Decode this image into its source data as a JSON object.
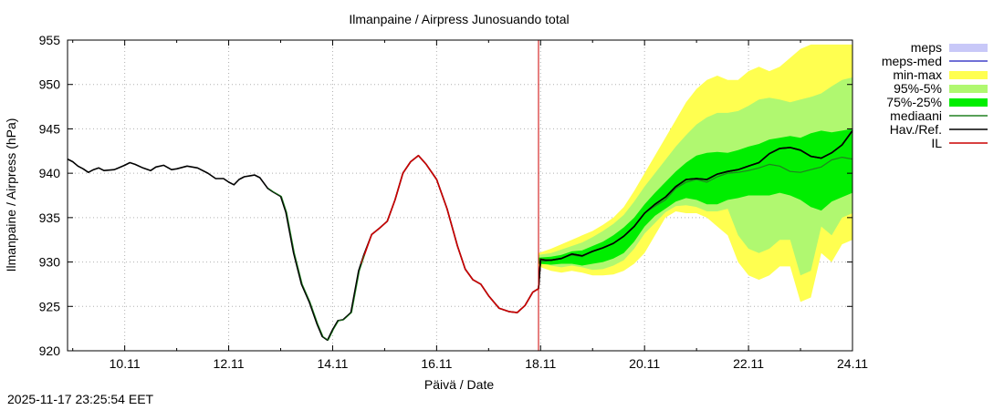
{
  "timestamp": "2025-11-17 23:25:54 EET",
  "chart_data": {
    "type": "area",
    "title": "Ilmanpaine / Airpress Junosuando total",
    "xlabel": "Päivä / Date",
    "ylabel": "Ilmanpaine / Airpress (hPa)",
    "xlim": [
      8.9,
      24.0
    ],
    "ylim": [
      920,
      955
    ],
    "grid": true,
    "legend_position": "right",
    "x_ticks": [
      {
        "x": 10,
        "label": "10.11"
      },
      {
        "x": 12,
        "label": "12.11"
      },
      {
        "x": 14,
        "label": "14.11"
      },
      {
        "x": 16,
        "label": "16.11"
      },
      {
        "x": 18,
        "label": "18.11"
      },
      {
        "x": 20,
        "label": "20.11"
      },
      {
        "x": 22,
        "label": "22.11"
      },
      {
        "x": 24,
        "label": "24.11"
      }
    ],
    "y_ticks": [
      920,
      925,
      930,
      935,
      940,
      945,
      950,
      955
    ],
    "now_line_x": 17.96,
    "colors": {
      "meps": "#c8c8f8",
      "meps_med": "#4040c8",
      "minmax": "#ffff50",
      "p95_5": "#b0f870",
      "p75_25": "#00ee00",
      "median": "#208020",
      "obs": "#000000",
      "il": "#cc0000",
      "now_line": "#cc0000",
      "grid": "#b0b0b0"
    },
    "legend": [
      {
        "key": "meps",
        "label": "meps",
        "style": "box"
      },
      {
        "key": "meps_med",
        "label": "meps-med",
        "style": "line"
      },
      {
        "key": "minmax",
        "label": "min-max",
        "style": "box"
      },
      {
        "key": "p95_5",
        "label": "95%-5%",
        "style": "box"
      },
      {
        "key": "p75_25",
        "label": "75%-25%",
        "style": "box"
      },
      {
        "key": "median",
        "label": "mediaani",
        "style": "line"
      },
      {
        "key": "obs",
        "label": "Hav./Ref.",
        "style": "line"
      },
      {
        "key": "il",
        "label": "IL",
        "style": "line"
      }
    ],
    "series": [
      {
        "name": "Hav./Ref.",
        "key": "obs",
        "x": [
          8.9,
          9.0,
          9.1,
          9.2,
          9.3,
          9.4,
          9.5,
          9.6,
          9.8,
          10.0,
          10.1,
          10.2,
          10.35,
          10.5,
          10.6,
          10.75,
          10.9,
          11.0,
          11.2,
          11.4,
          11.6,
          11.75,
          11.9,
          12.0,
          12.1,
          12.2,
          12.3,
          12.4,
          12.5,
          12.6,
          12.75,
          12.85,
          13.0,
          13.1,
          13.25,
          13.4,
          13.55,
          13.7,
          13.8,
          13.9,
          14.0,
          14.1,
          14.2,
          14.35,
          14.5,
          14.6,
          14.75,
          14.9,
          15.05,
          15.2,
          15.35,
          15.5,
          15.65,
          15.8,
          16.0,
          16.2,
          16.4,
          16.55,
          16.7,
          16.85,
          17.0,
          17.2,
          17.4,
          17.55,
          17.7,
          17.85,
          17.96,
          18.0,
          18.1,
          18.2,
          18.4,
          18.6,
          18.8,
          19.0,
          19.2,
          19.4,
          19.6,
          19.8,
          20.0,
          20.2,
          20.4,
          20.6,
          20.8,
          21.0,
          21.2,
          21.4,
          21.6,
          21.8,
          22.0,
          22.2,
          22.4,
          22.6,
          22.8,
          23.0,
          23.2,
          23.4,
          23.6,
          23.8,
          24.0
        ],
        "y": [
          941.6,
          941.3,
          940.8,
          940.5,
          940.1,
          940.4,
          940.6,
          940.3,
          940.4,
          940.9,
          941.2,
          941.0,
          940.6,
          940.3,
          940.7,
          940.9,
          940.4,
          940.5,
          940.8,
          940.6,
          940.0,
          939.4,
          939.4,
          939.0,
          938.7,
          939.3,
          939.6,
          939.7,
          939.8,
          939.5,
          938.3,
          937.9,
          937.4,
          935.6,
          931.0,
          927.5,
          925.5,
          923.0,
          921.6,
          921.2,
          922.4,
          923.4,
          923.5,
          924.3,
          929.0,
          930.8,
          933.1,
          933.8,
          934.6,
          937.0,
          940.0,
          941.3,
          942.0,
          941.0,
          939.3,
          936.0,
          931.8,
          929.2,
          928.0,
          927.5,
          926.2,
          924.8,
          924.4,
          924.3,
          925.1,
          926.6,
          927.0,
          930.3,
          930.2,
          930.2,
          930.4,
          930.9,
          930.7,
          931.2,
          931.6,
          932.1,
          932.9,
          934.0,
          935.5,
          936.5,
          937.3,
          938.5,
          939.3,
          939.4,
          939.3,
          939.9,
          940.2,
          940.4,
          940.8,
          941.2,
          942.2,
          942.8,
          942.9,
          942.6,
          941.9,
          941.7,
          942.3,
          943.2,
          944.8
        ]
      },
      {
        "name": "IL",
        "key": "il",
        "x": [
          14.55,
          14.75,
          14.9,
          15.05,
          15.2,
          15.35,
          15.5,
          15.65,
          15.8,
          16.0,
          16.2,
          16.4,
          16.55,
          16.7,
          16.85,
          17.0,
          17.2,
          17.4,
          17.55,
          17.7,
          17.85,
          17.96,
          18.0,
          18.1,
          18.2
        ],
        "y": [
          929.8,
          933.1,
          933.8,
          934.6,
          937.0,
          940.0,
          941.3,
          942.0,
          941.0,
          939.3,
          936.0,
          931.8,
          929.2,
          928.0,
          927.5,
          926.2,
          924.8,
          924.4,
          924.3,
          925.1,
          926.6,
          927.0,
          930.3,
          930.2,
          930.2
        ]
      },
      {
        "name": "mediaani",
        "key": "median",
        "x": [
          17.96,
          18.2,
          18.4,
          18.6,
          18.8,
          19.0,
          19.2,
          19.4,
          19.6,
          19.8,
          20.0,
          20.2,
          20.4,
          20.6,
          20.8,
          21.0,
          21.2,
          21.4,
          21.6,
          21.8,
          22.0,
          22.2,
          22.4,
          22.6,
          22.8,
          23.0,
          23.2,
          23.4,
          23.6,
          23.8,
          24.0
        ],
        "y": [
          930.0,
          930.2,
          930.4,
          930.8,
          930.6,
          931.2,
          931.6,
          932.1,
          932.9,
          934.0,
          935.5,
          936.3,
          937.0,
          938.3,
          939.0,
          939.3,
          939.0,
          939.6,
          940.0,
          940.1,
          940.3,
          940.6,
          941.0,
          940.8,
          940.2,
          940.1,
          940.4,
          940.7,
          941.5,
          941.8,
          941.6
        ]
      }
    ],
    "bands": [
      {
        "name": "min-max",
        "key": "minmax",
        "x": [
          17.96,
          18.2,
          18.4,
          18.6,
          18.8,
          19.0,
          19.2,
          19.4,
          19.6,
          19.8,
          20.0,
          20.2,
          20.4,
          20.6,
          20.8,
          21.0,
          21.2,
          21.4,
          21.6,
          21.8,
          22.0,
          22.2,
          22.4,
          22.6,
          22.8,
          23.0,
          23.2,
          23.4,
          23.6,
          23.8,
          24.0
        ],
        "upper": [
          931.0,
          931.5,
          932.0,
          932.5,
          933.0,
          933.5,
          934.2,
          935.0,
          936.2,
          938.0,
          940.0,
          942.0,
          944.0,
          946.0,
          948.0,
          949.5,
          950.5,
          951.0,
          950.5,
          950.5,
          951.5,
          952.0,
          951.5,
          952.0,
          953.0,
          954.0,
          954.5,
          954.5,
          954.5,
          954.5,
          954.5
        ],
        "lower": [
          929.5,
          929.0,
          928.8,
          929.0,
          928.8,
          928.5,
          928.5,
          928.6,
          929.0,
          929.8,
          931.0,
          933.0,
          935.0,
          935.7,
          935.5,
          935.5,
          935.0,
          934.0,
          933.0,
          930.0,
          928.5,
          928.0,
          928.5,
          929.5,
          929.5,
          925.5,
          926.0,
          931.0,
          930.0,
          932.0,
          932.5
        ]
      },
      {
        "name": "95%-5%",
        "key": "p95_5",
        "x": [
          17.96,
          18.2,
          18.4,
          18.6,
          18.8,
          19.0,
          19.2,
          19.4,
          19.6,
          19.8,
          20.0,
          20.2,
          20.4,
          20.6,
          20.8,
          21.0,
          21.2,
          21.4,
          21.6,
          21.8,
          22.0,
          22.2,
          22.4,
          22.6,
          22.8,
          23.0,
          23.2,
          23.4,
          23.6,
          23.8,
          24.0
        ],
        "upper": [
          930.8,
          931.0,
          931.4,
          931.8,
          932.2,
          932.8,
          933.5,
          934.3,
          935.3,
          936.8,
          938.5,
          940.0,
          941.5,
          943.0,
          944.3,
          945.5,
          946.3,
          946.8,
          946.8,
          947.0,
          947.6,
          948.3,
          948.5,
          948.3,
          948.0,
          948.3,
          948.6,
          949.0,
          949.8,
          950.5,
          950.8
        ]
      },
      {
        "name": "75%-25%",
        "key": "p75_25",
        "x": [
          17.96,
          18.2,
          18.4,
          18.6,
          18.8,
          19.0,
          19.2,
          19.4,
          19.6,
          19.8,
          20.0,
          20.2,
          20.4,
          20.6,
          20.8,
          21.0,
          21.2,
          21.4,
          21.6,
          21.8,
          22.0,
          22.2,
          22.4,
          22.6,
          22.8,
          23.0,
          23.2,
          23.4,
          23.6,
          23.8,
          24.0
        ],
        "upper": [
          930.5,
          930.6,
          930.8,
          931.2,
          931.3,
          931.8,
          932.3,
          933.0,
          933.9,
          935.0,
          936.5,
          937.8,
          939.0,
          940.2,
          941.2,
          942.0,
          942.3,
          942.4,
          942.3,
          942.6,
          943.0,
          943.3,
          943.8,
          944.0,
          944.2,
          944.0,
          944.5,
          944.8,
          944.6,
          944.8,
          945.0
        ],
        "lower": [
          929.8,
          929.7,
          929.8,
          929.8,
          929.6,
          929.8,
          930.0,
          930.4,
          931.0,
          932.3,
          934.0,
          935.2,
          936.0,
          936.8,
          937.2,
          937.0,
          936.5,
          936.5,
          937.0,
          937.2,
          937.5,
          937.5,
          937.5,
          937.8,
          937.5,
          937.0,
          936.2,
          935.8,
          936.8,
          937.3,
          937.8
        ]
      }
    ]
  }
}
